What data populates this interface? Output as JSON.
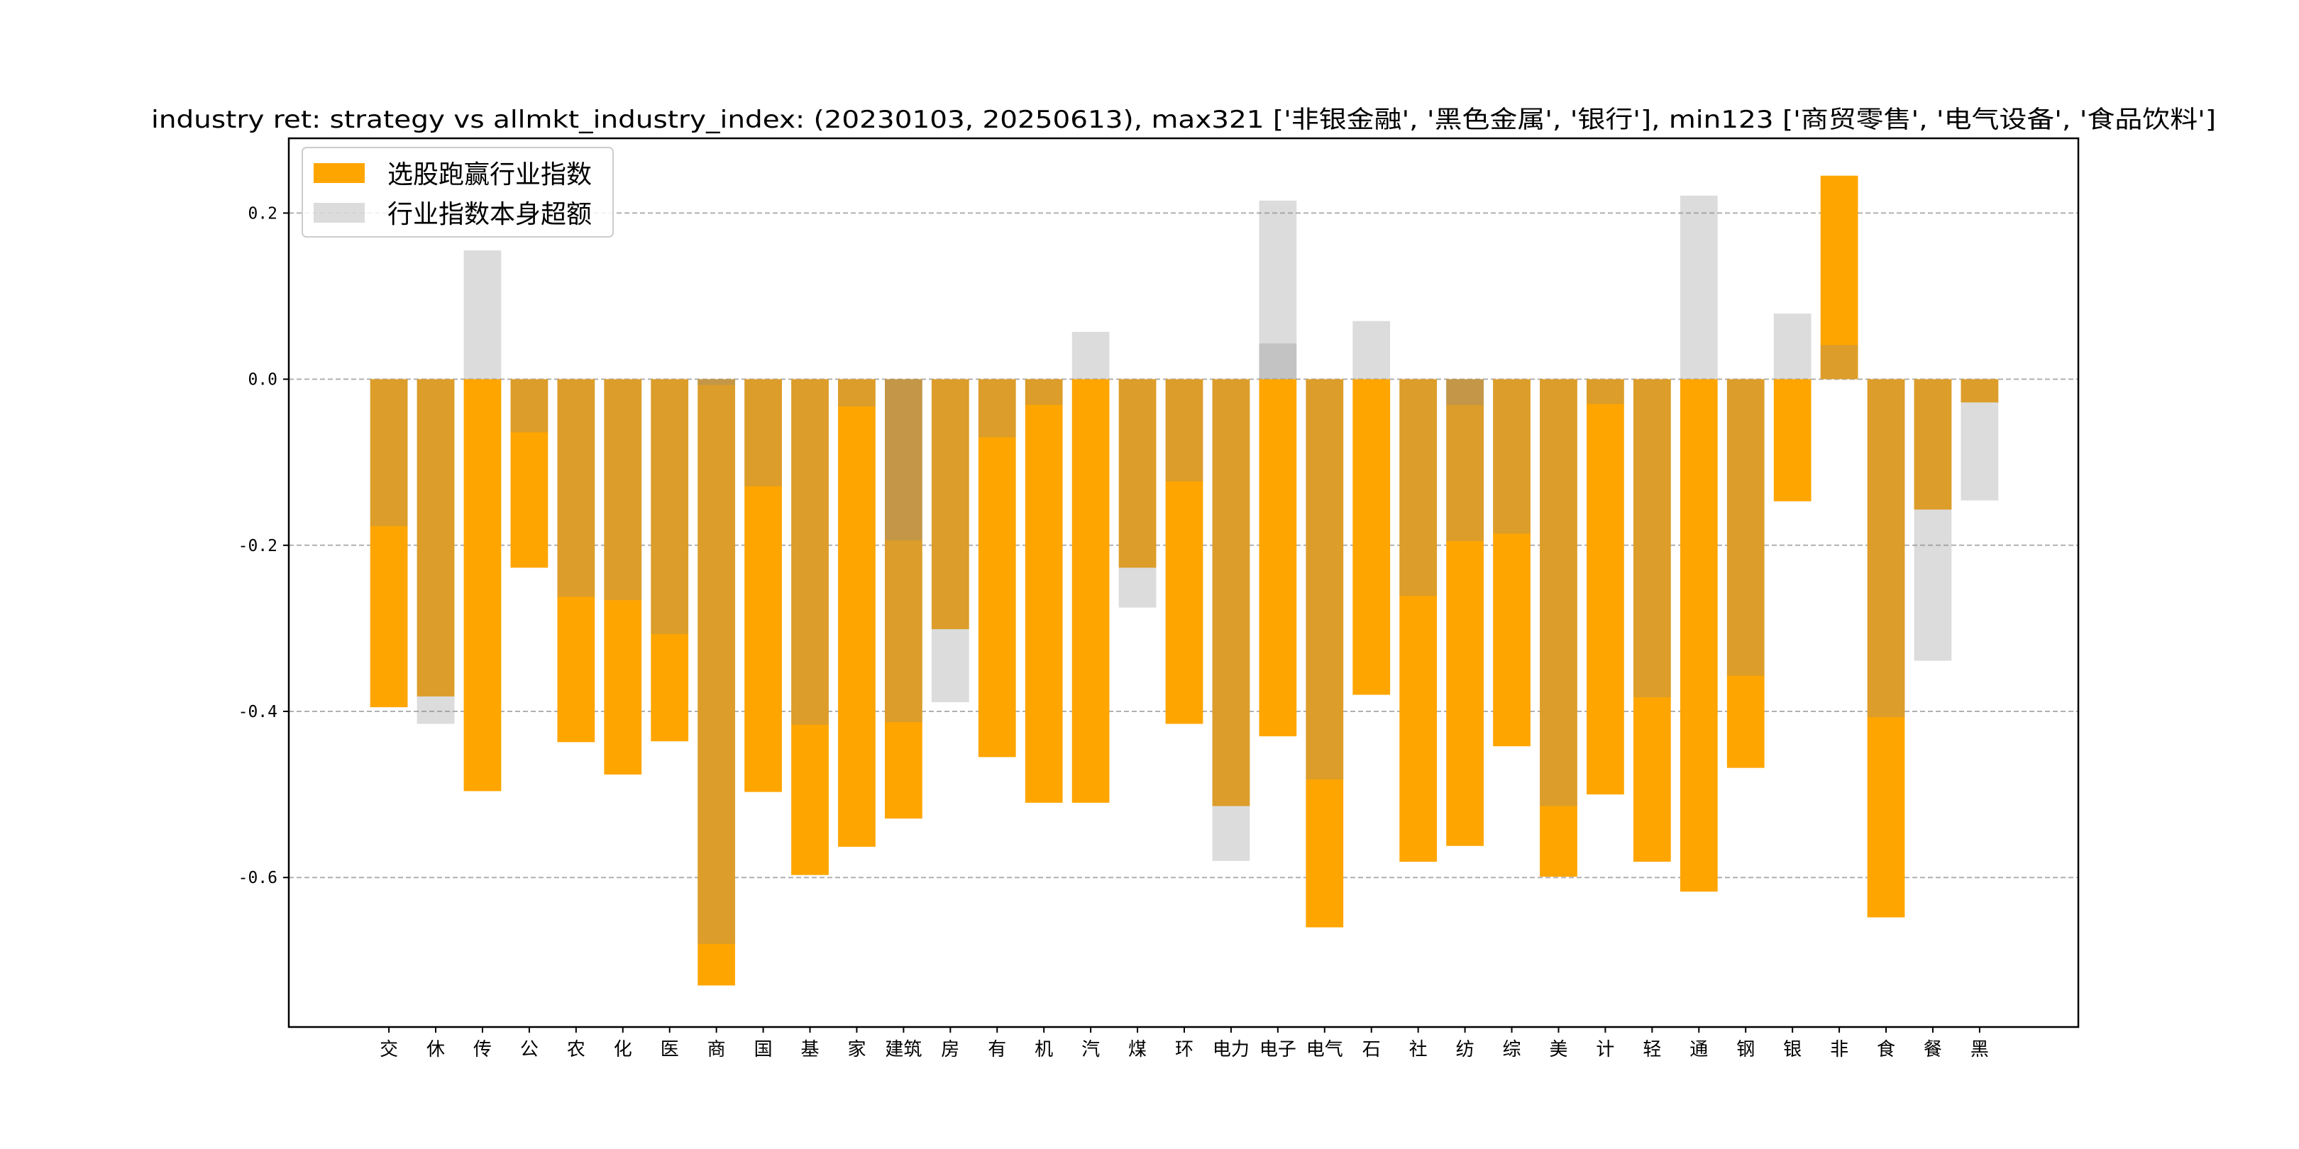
{
  "chart_data": {
    "type": "bar",
    "title": "industry ret: strategy vs allmkt_industry_index: (20230103, 20250613), max321 ['非银金融', '黑色金属', '银行'], min123 ['商贸零售', '电气设备', '食品饮料']",
    "xlabel": "",
    "ylabel": "",
    "ylim": [
      -0.78,
      0.29
    ],
    "yticks": [
      0.2,
      0.0,
      -0.2,
      -0.4,
      -0.6
    ],
    "ytick_labels": [
      "0.2",
      "0.0",
      "-0.2",
      "-0.4",
      "-0.6"
    ],
    "grid": "y-dashed",
    "legend_position": "top-left",
    "categories": [
      "交",
      "休",
      "传",
      "公",
      "农",
      "化",
      "医",
      "商",
      "国",
      "基",
      "家",
      "建筑",
      "房",
      "有",
      "机",
      "汽",
      "煤",
      "环",
      "电力",
      "电子",
      "电气",
      "石",
      "社",
      "纺",
      "综",
      "美",
      "计",
      "轻",
      "通",
      "钢",
      "银",
      "非",
      "食",
      "餐",
      "黑"
    ],
    "series": [
      {
        "name": "选股跑赢行业指数",
        "color": "#ffa500",
        "values": [
          -0.395,
          -0.382,
          -0.496,
          -0.227,
          -0.437,
          -0.476,
          -0.436,
          -0.73,
          -0.497,
          -0.597,
          -0.563,
          -0.529,
          -0.301,
          -0.455,
          -0.51,
          -0.51,
          -0.227,
          -0.415,
          -0.514,
          -0.43,
          -0.66,
          -0.38,
          -0.581,
          -0.562,
          -0.442,
          -0.599,
          -0.5,
          -0.581,
          -0.617,
          -0.468,
          -0.147,
          0.245,
          -0.648,
          -0.157,
          -0.028
        ]
      },
      {
        "name": "行业指数本身超额",
        "color": "#d9d9d9",
        "values": [
          [
            -0.177
          ],
          [
            -0.415
          ],
          [
            0.155
          ],
          [
            -0.064
          ],
          [
            -0.262
          ],
          [
            -0.266
          ],
          [
            -0.307
          ],
          [
            -0.007,
            -0.68
          ],
          [
            -0.129
          ],
          [
            -0.416
          ],
          [
            -0.033
          ],
          [
            -0.194,
            -0.413
          ],
          [
            -0.389
          ],
          [
            -0.07
          ],
          [
            -0.031
          ],
          [
            0.057
          ],
          [
            -0.275
          ],
          [
            -0.123
          ],
          [
            -0.58
          ],
          [
            0.215,
            0.043
          ],
          [
            -0.482
          ],
          [
            0.07
          ],
          [
            -0.261
          ],
          [
            -0.031,
            -0.195
          ],
          [
            -0.186
          ],
          [
            -0.514
          ],
          [
            -0.03
          ],
          [
            -0.383
          ],
          [
            0.221
          ],
          [
            -0.357
          ],
          [
            0.079
          ],
          [
            0.041
          ],
          [
            -0.407
          ],
          [
            -0.339
          ],
          [
            -0.146
          ]
        ]
      }
    ]
  }
}
